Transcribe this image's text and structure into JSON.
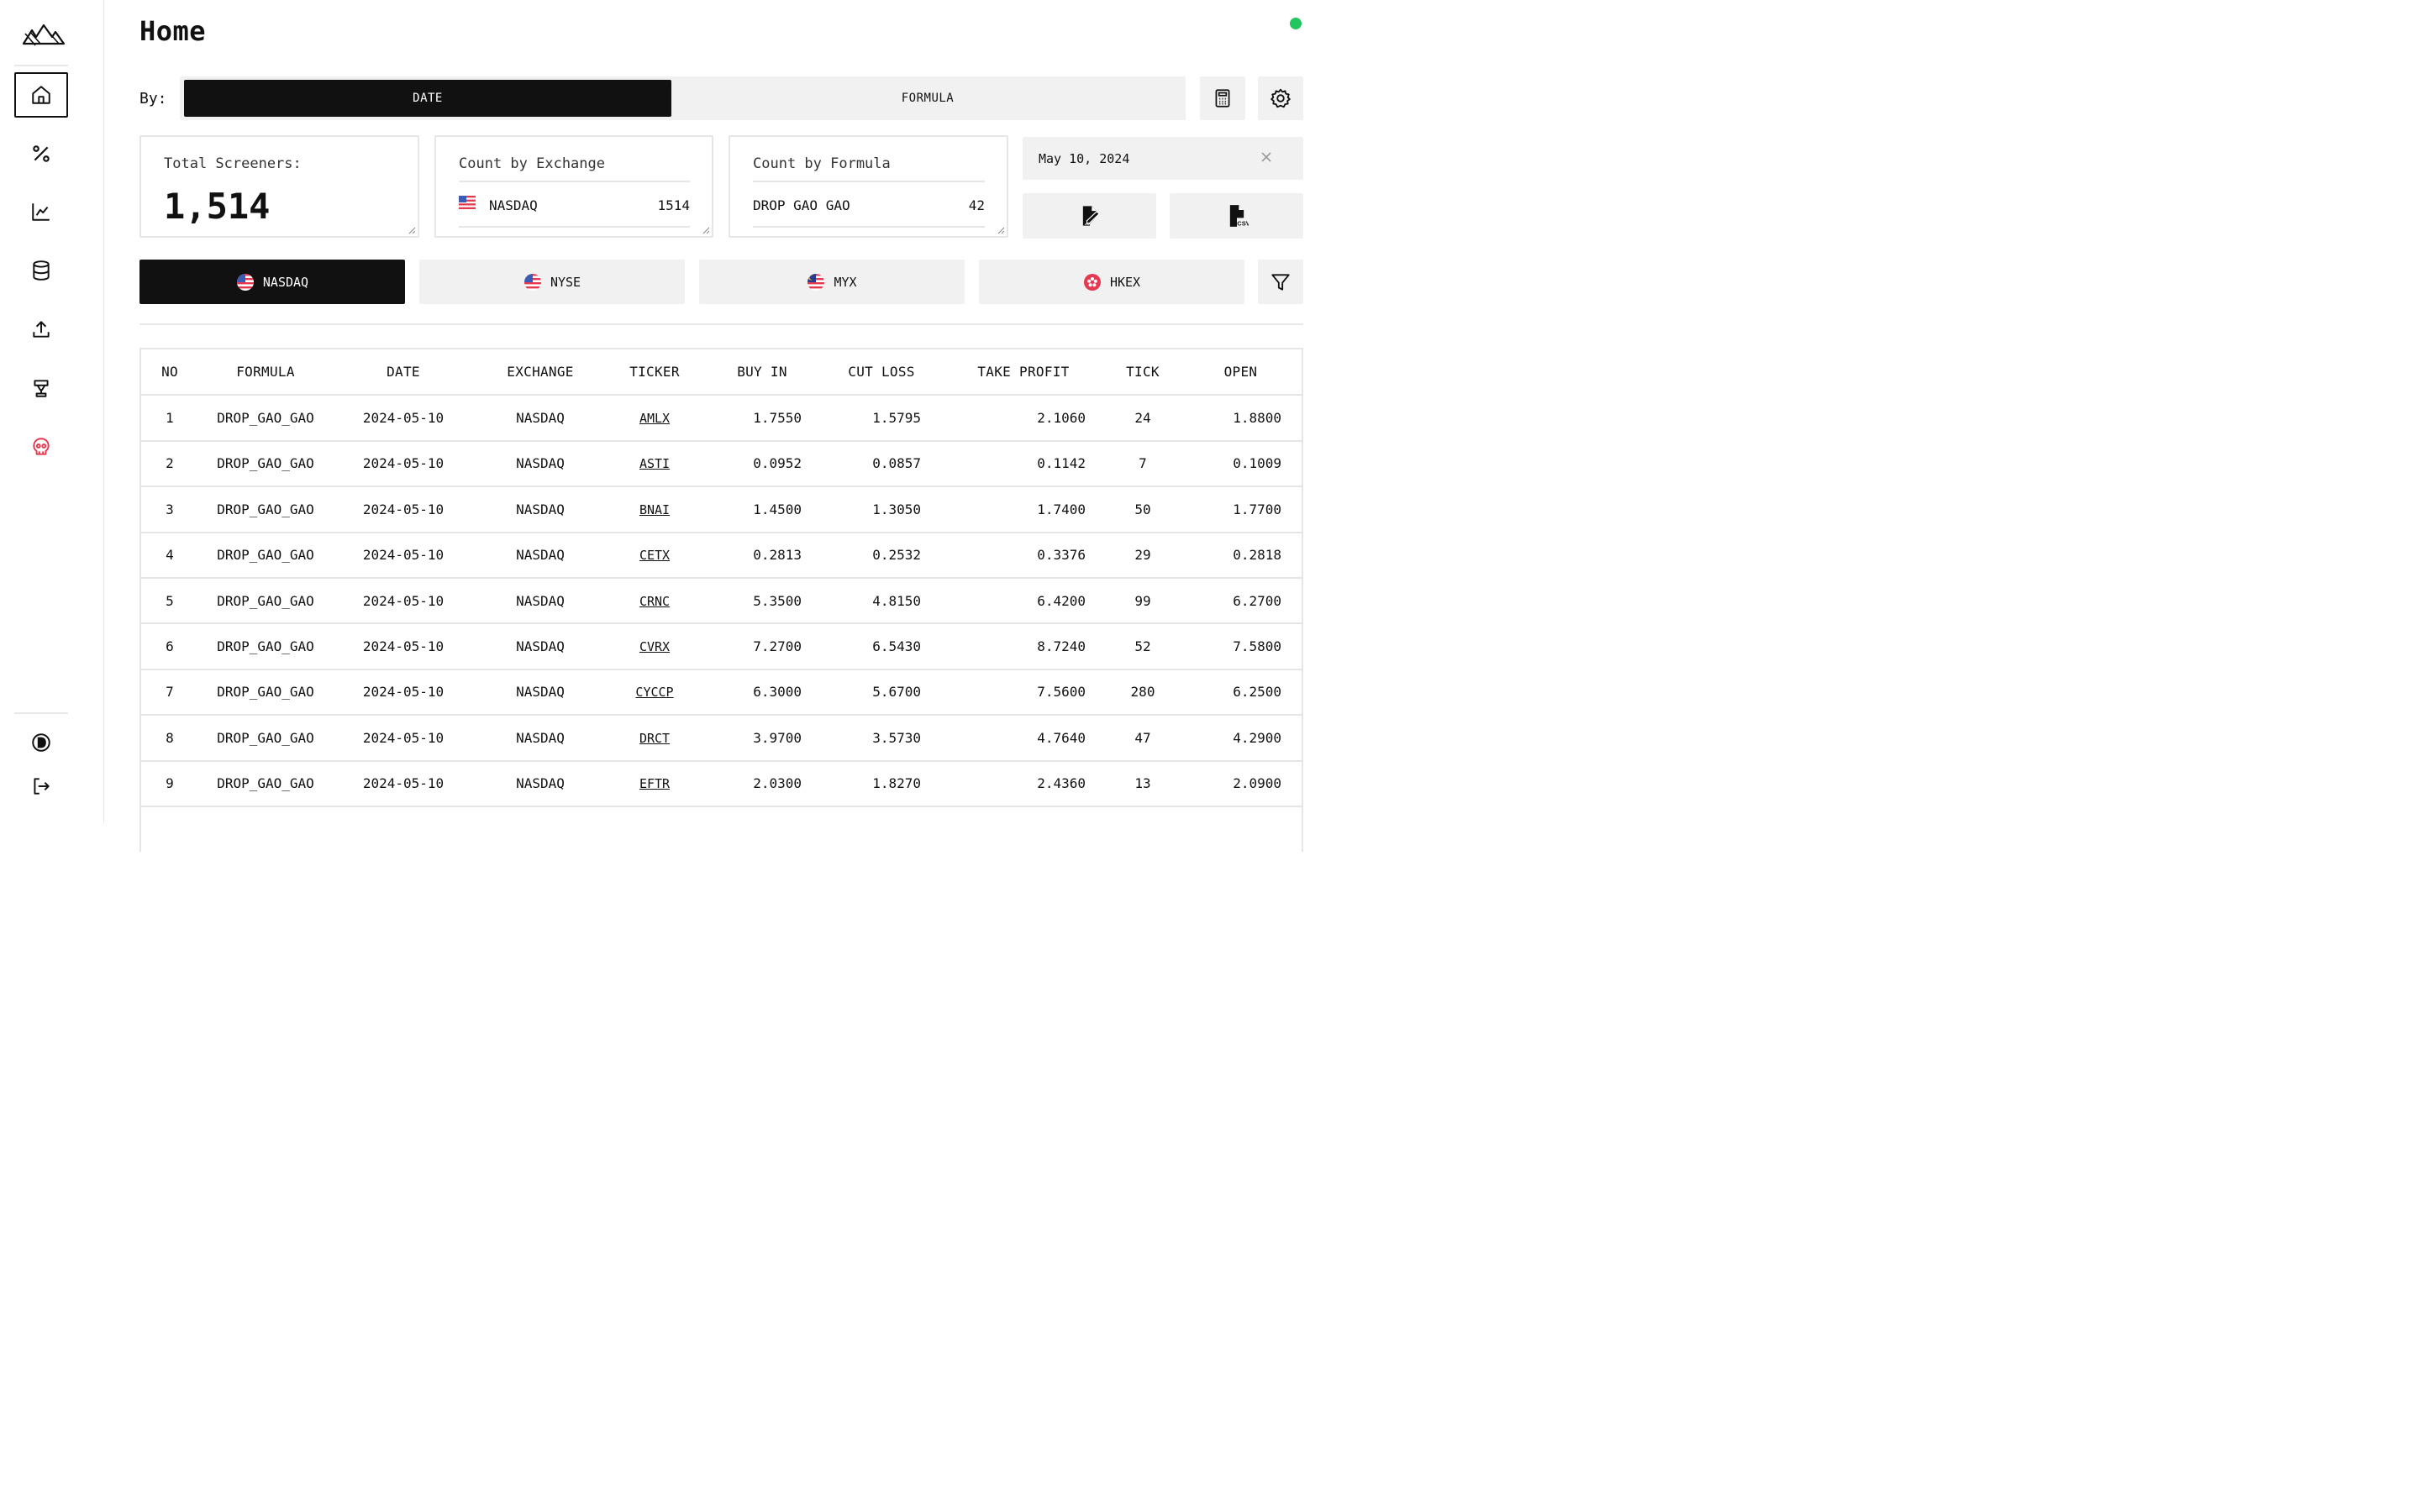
{
  "app": {
    "title": "Home",
    "status_color": "#22c55e"
  },
  "sidebar": {
    "items": [
      {
        "name": "home",
        "icon": "home-icon",
        "active": true
      },
      {
        "name": "percent",
        "icon": "percent-icon"
      },
      {
        "name": "chart",
        "icon": "line-chart-icon"
      },
      {
        "name": "database",
        "icon": "database-icon"
      },
      {
        "name": "upload",
        "icon": "upload-icon"
      },
      {
        "name": "trophy",
        "icon": "trophy-icon"
      },
      {
        "name": "skull",
        "icon": "skull-icon",
        "color": "#e53950"
      }
    ],
    "bottom": [
      {
        "name": "theme",
        "icon": "theme-toggle-icon"
      },
      {
        "name": "logout",
        "icon": "logout-icon"
      }
    ]
  },
  "toolbar": {
    "by_label": "By:",
    "modes": [
      {
        "label": "DATE",
        "active": true
      },
      {
        "label": "FORMULA",
        "active": false
      }
    ]
  },
  "cards": {
    "total": {
      "label": "Total Screeners:",
      "value": "1,514"
    },
    "by_exchange": {
      "label": "Count by Exchange",
      "name": "NASDAQ",
      "value": "1514"
    },
    "by_formula": {
      "label": "Count by Formula",
      "name": "DROP GAO GAO",
      "value": "42"
    }
  },
  "date_filter": {
    "value": "May 10, 2024"
  },
  "exchange_tabs": [
    {
      "label": "NASDAQ",
      "active": true
    },
    {
      "label": "NYSE",
      "active": false
    },
    {
      "label": "MYX",
      "active": false
    },
    {
      "label": "HKEX",
      "active": false
    }
  ],
  "table": {
    "headers": [
      "NO",
      "FORMULA",
      "DATE",
      "EXCHANGE",
      "TICKER",
      "BUY IN",
      "CUT LOSS",
      "TAKE PROFIT",
      "TICK",
      "OPEN"
    ],
    "rows": [
      [
        "1",
        "DROP_GAO_GAO",
        "2024-05-10",
        "NASDAQ",
        "AMLX",
        "1.7550",
        "1.5795",
        "2.1060",
        "24",
        "1.8800"
      ],
      [
        "2",
        "DROP_GAO_GAO",
        "2024-05-10",
        "NASDAQ",
        "ASTI",
        "0.0952",
        "0.0857",
        "0.1142",
        "7",
        "0.1009"
      ],
      [
        "3",
        "DROP_GAO_GAO",
        "2024-05-10",
        "NASDAQ",
        "BNAI",
        "1.4500",
        "1.3050",
        "1.7400",
        "50",
        "1.7700"
      ],
      [
        "4",
        "DROP_GAO_GAO",
        "2024-05-10",
        "NASDAQ",
        "CETX",
        "0.2813",
        "0.2532",
        "0.3376",
        "29",
        "0.2818"
      ],
      [
        "5",
        "DROP_GAO_GAO",
        "2024-05-10",
        "NASDAQ",
        "CRNC",
        "5.3500",
        "4.8150",
        "6.4200",
        "99",
        "6.2700"
      ],
      [
        "6",
        "DROP_GAO_GAO",
        "2024-05-10",
        "NASDAQ",
        "CVRX",
        "7.2700",
        "6.5430",
        "8.7240",
        "52",
        "7.5800"
      ],
      [
        "7",
        "DROP_GAO_GAO",
        "2024-05-10",
        "NASDAQ",
        "CYCCP",
        "6.3000",
        "5.6700",
        "7.5600",
        "280",
        "6.2500"
      ],
      [
        "8",
        "DROP_GAO_GAO",
        "2024-05-10",
        "NASDAQ",
        "DRCT",
        "3.9700",
        "3.5730",
        "4.7640",
        "47",
        "4.2900"
      ],
      [
        "9",
        "DROP_GAO_GAO",
        "2024-05-10",
        "NASDAQ",
        "EFTR",
        "2.0300",
        "1.8270",
        "2.4360",
        "13",
        "2.0900"
      ]
    ]
  }
}
